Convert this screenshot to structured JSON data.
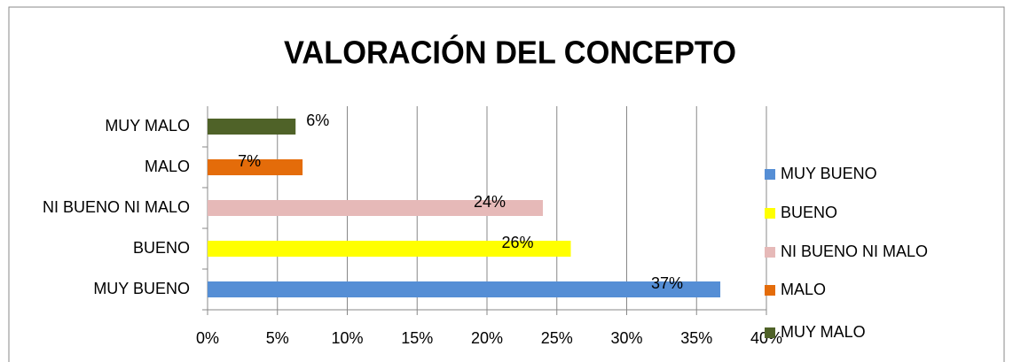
{
  "chart_data": {
    "type": "bar",
    "orientation": "horizontal",
    "title": "VALORACIÓN DEL CONCEPTO",
    "categories": [
      "MUY BUENO",
      "BUENO",
      "NI BUENO NI MALO",
      "MALO",
      "MUY MALO"
    ],
    "values": [
      36.7,
      26,
      24,
      6.8,
      6.3
    ],
    "value_labels": [
      "37%",
      "26%",
      "24%",
      "7%",
      "6%"
    ],
    "colors": [
      "#558ed5",
      "#ffff00",
      "#e6b9b8",
      "#e46c0a",
      "#4f6228"
    ],
    "xlim": [
      0,
      40
    ],
    "xticks": [
      {
        "value": 0,
        "label": "0%"
      },
      {
        "value": 5,
        "label": "5%"
      },
      {
        "value": 10,
        "label": "10%"
      },
      {
        "value": 15,
        "label": "15%"
      },
      {
        "value": 20,
        "label": "20%"
      },
      {
        "value": 25,
        "label": "25%"
      },
      {
        "value": 30,
        "label": "30%"
      },
      {
        "value": 35,
        "label": "35%"
      },
      {
        "value": 40,
        "label": "40%"
      }
    ],
    "grid": true,
    "legend": "right"
  }
}
